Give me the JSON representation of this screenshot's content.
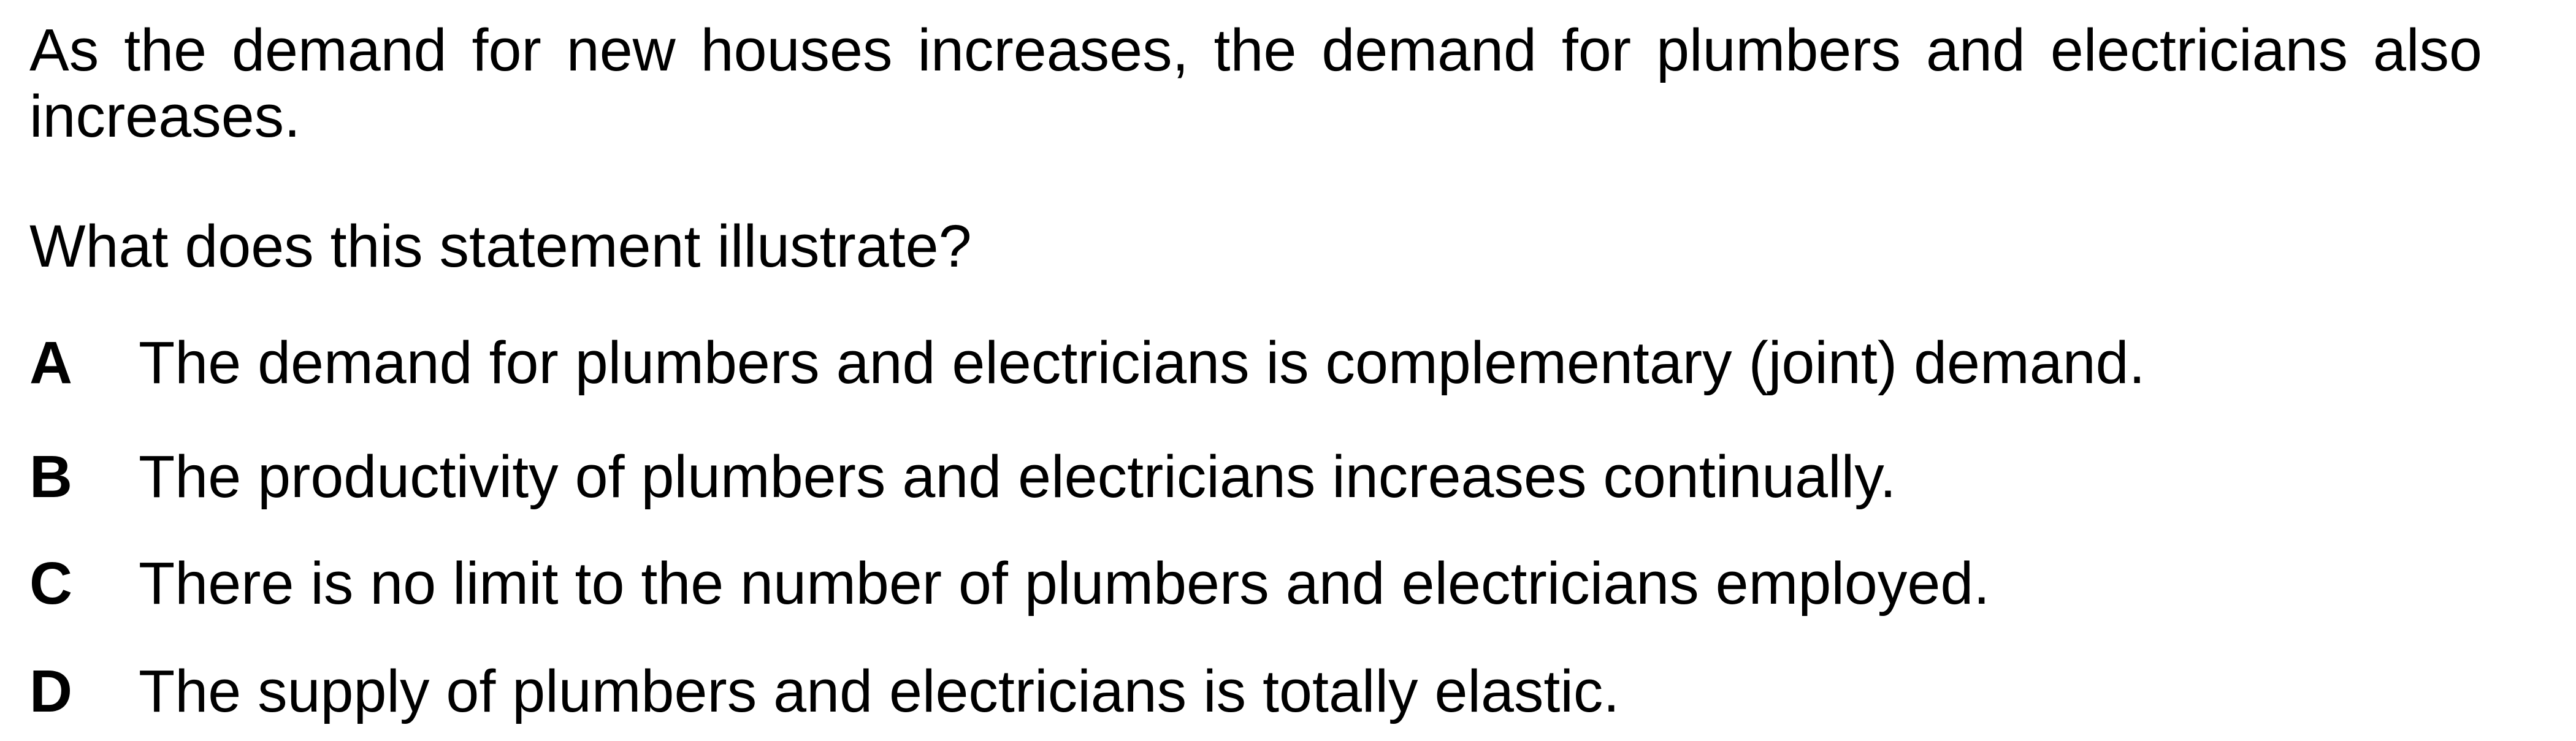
{
  "question": {
    "statement": "As the demand for new houses increases, the demand for plumbers and electricians also increases.",
    "prompt": "What does this statement illustrate?"
  },
  "options": [
    {
      "letter": "A",
      "text": "The demand for plumbers and electricians is complementary (joint) demand."
    },
    {
      "letter": "B",
      "text": "The productivity of plumbers and electricians increases continually."
    },
    {
      "letter": "C",
      "text": "There is no limit to the number of plumbers and electricians employed."
    },
    {
      "letter": "D",
      "text": "The supply of plumbers and electricians is totally elastic."
    }
  ]
}
